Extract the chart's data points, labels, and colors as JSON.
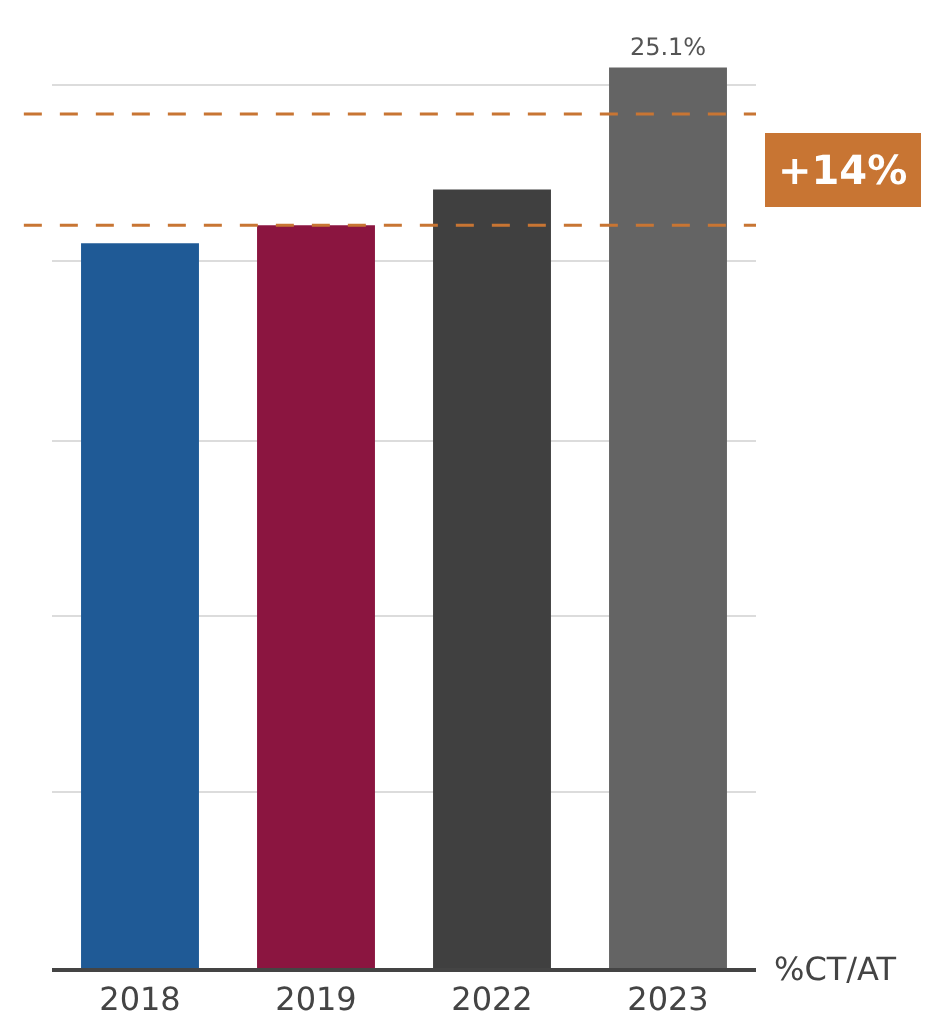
{
  "chart_data": {
    "type": "bar",
    "categories": [
      "2018",
      "2019",
      "2022",
      "2023"
    ],
    "values": [
      20.2,
      20.7,
      21.7,
      25.1
    ],
    "colors": [
      "#1f5a96",
      "#8b1540",
      "#404040",
      "#646464"
    ],
    "value_labels": [
      null,
      null,
      null,
      "25.1%"
    ],
    "xlabel": "%CT/AT",
    "yticks": [
      {
        "value": 4.9,
        "label": null
      },
      {
        "value": 9.8,
        "label": null
      },
      {
        "value": 14.7,
        "label": null
      },
      {
        "value": 19.7,
        "label": null
      },
      {
        "value": 24.6,
        "label": null
      }
    ],
    "grid": "y",
    "tick_labels": "x",
    "ref_lines": [
      {
        "axis": "y",
        "value": 20.7,
        "color": "#c87533",
        "line_style": "dashed"
      },
      {
        "axis": "y",
        "value": 23.8,
        "color": "#c87533",
        "line_style": "dashed"
      }
    ],
    "annotations": [
      "+14%"
    ]
  }
}
